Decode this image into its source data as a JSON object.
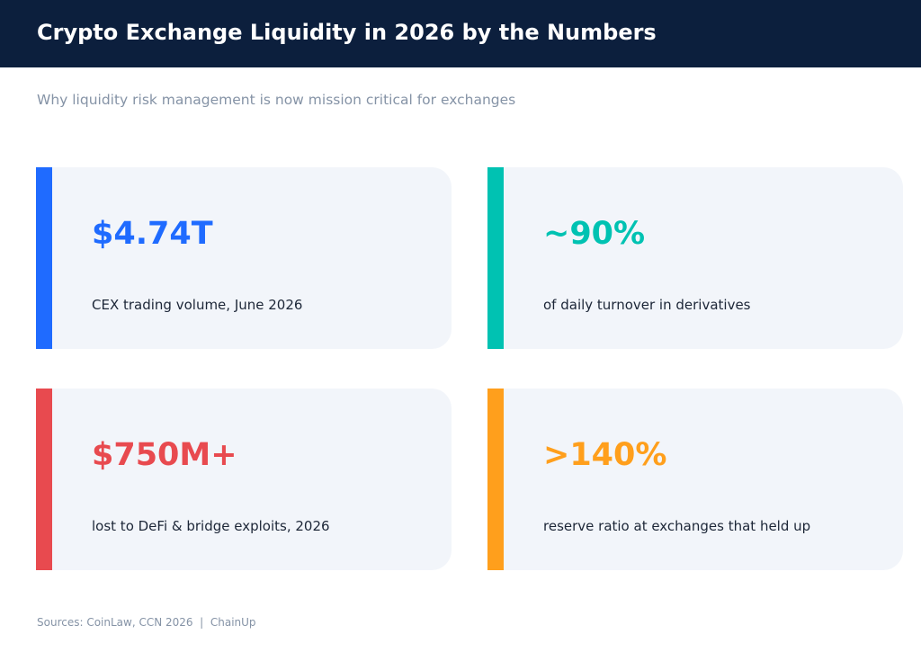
{
  "header": {
    "title": "Crypto Exchange Liquidity in 2026 by the Numbers"
  },
  "subtitle": "Why liquidity risk management is now mission critical for exchanges",
  "cards": [
    {
      "value": "$4.74T",
      "label": "CEX trading volume, June 2026",
      "accent_color": "#1f6bff"
    },
    {
      "value": "~90%",
      "label": "of daily turnover in derivatives",
      "accent_color": "#00c2b2"
    },
    {
      "value": "$750M+",
      "label": "lost to DeFi & bridge exploits, 2026",
      "accent_color": "#e84a4f"
    },
    {
      "value": ">140%",
      "label": "reserve ratio at exchanges that held up",
      "accent_color": "#ff9f1c"
    }
  ],
  "footer": {
    "sources": "Sources: CoinLaw, CCN 2026  |  ChainUp"
  }
}
